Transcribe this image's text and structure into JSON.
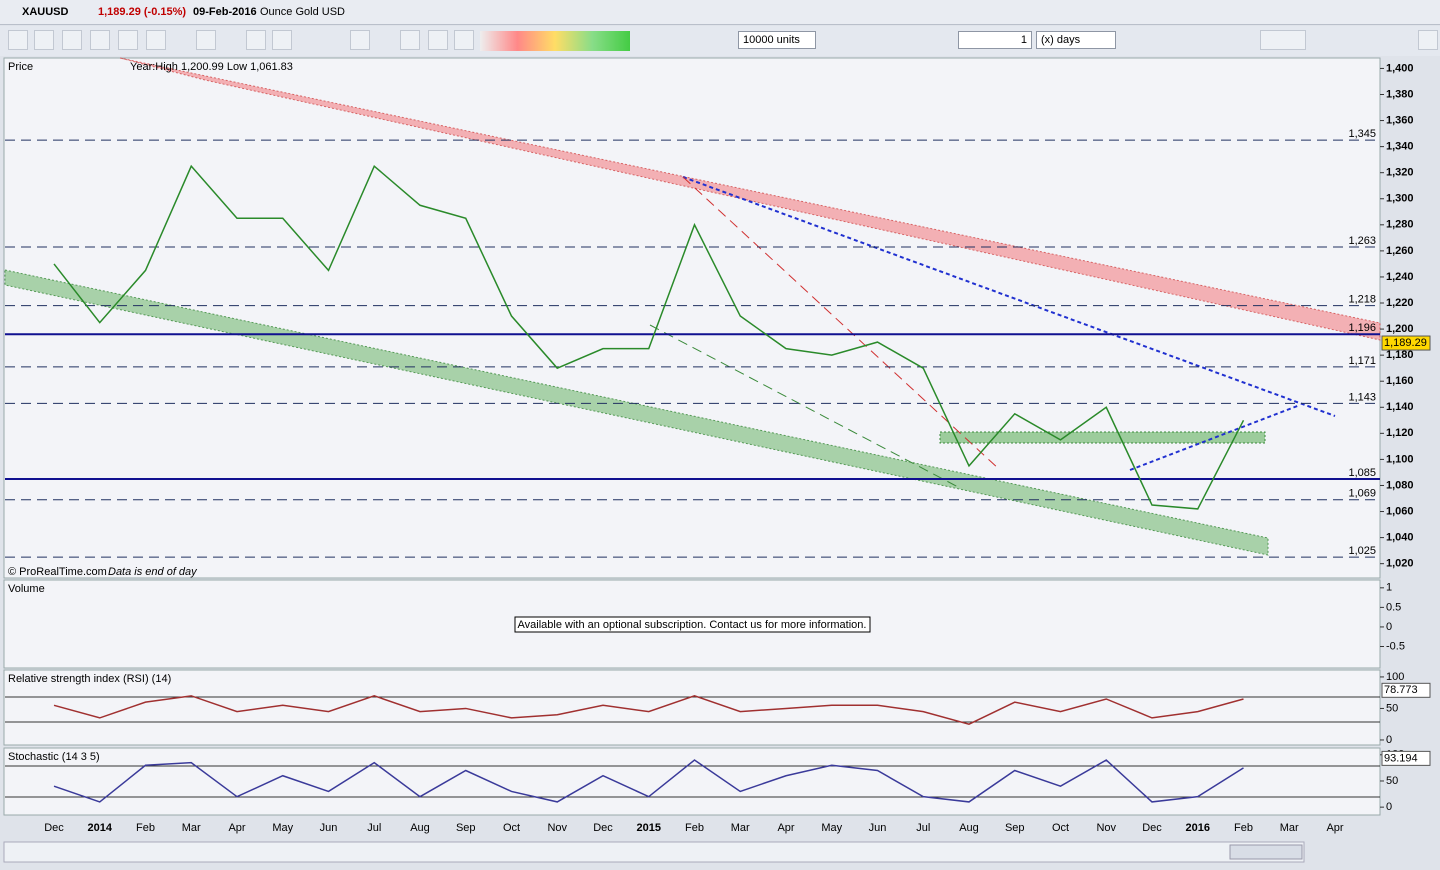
{
  "window": {
    "symbol": "XAUUSD",
    "quote": "1,189.29 (-0.15%)",
    "date": "09-Feb-2016",
    "description": "Ounce Gold USD"
  },
  "toolbar": {
    "quantity": "10000 units",
    "period_value": "1",
    "period_unit": "(x) days"
  },
  "chart_data": [
    {
      "type": "line",
      "title": "Price",
      "subtitle": "Year:High 1,200.99 Low 1,061.83",
      "annotations": [
        "© ProRealTime.com",
        "Data is end of day"
      ],
      "categories": [
        "Dec",
        "2014",
        "Feb",
        "Mar",
        "Apr",
        "May",
        "Jun",
        "Jul",
        "Aug",
        "Sep",
        "Oct",
        "Nov",
        "Dec",
        "2015",
        "Feb",
        "Mar",
        "Apr",
        "May",
        "Jun",
        "Jul",
        "Aug",
        "Sep",
        "Oct",
        "Nov",
        "Dec",
        "2016",
        "Feb",
        "Mar",
        "Apr"
      ],
      "values": [
        1250,
        1205,
        1245,
        1325,
        1285,
        1285,
        1245,
        1325,
        1295,
        1285,
        1210,
        1170,
        1185,
        1185,
        1280,
        1210,
        1185,
        1180,
        1190,
        1170,
        1095,
        1135,
        1115,
        1140,
        1065,
        1062,
        1130,
        null,
        null
      ],
      "color": "#2a8a2a",
      "ylim": [
        1009,
        1408
      ],
      "yticks": [
        {
          "value": 1020,
          "label": "1,020"
        },
        {
          "value": 1040,
          "label": "1,040"
        },
        {
          "value": 1060,
          "label": "1,060"
        },
        {
          "value": 1080,
          "label": "1,080"
        },
        {
          "value": 1100,
          "label": "1,100"
        },
        {
          "value": 1120,
          "label": "1,120"
        },
        {
          "value": 1140,
          "label": "1,140"
        },
        {
          "value": 1160,
          "label": "1,160"
        },
        {
          "value": 1180,
          "label": "1,180"
        },
        {
          "value": 1200,
          "label": "1,200"
        },
        {
          "value": 1220,
          "label": "1,220"
        },
        {
          "value": 1240,
          "label": "1,240"
        },
        {
          "value": 1260,
          "label": "1,260"
        },
        {
          "value": 1280,
          "label": "1,280"
        },
        {
          "value": 1300,
          "label": "1,300"
        },
        {
          "value": 1320,
          "label": "1,320"
        },
        {
          "value": 1340,
          "label": "1,340"
        },
        {
          "value": 1360,
          "label": "1,360"
        },
        {
          "value": 1380,
          "label": "1,380"
        },
        {
          "value": 1400,
          "label": "1,400"
        }
      ],
      "levels": [
        {
          "value": 1345,
          "label": "1,345",
          "style": "dashed"
        },
        {
          "value": 1263,
          "label": "1,263",
          "style": "dashed"
        },
        {
          "value": 1218,
          "label": "1,218",
          "style": "dashed"
        },
        {
          "value": 1196,
          "label": "1,196",
          "style": "solid"
        },
        {
          "value": 1171,
          "label": "1,171",
          "style": "dashed"
        },
        {
          "value": 1143,
          "label": "1,143",
          "style": "dashed"
        },
        {
          "value": 1085,
          "label": "1,085",
          "style": "solid"
        },
        {
          "value": 1069,
          "label": "1,069",
          "style": "dashed"
        },
        {
          "value": 1025,
          "label": "1,025",
          "style": "dashed"
        }
      ],
      "last_value": {
        "value": 1189.29,
        "label": "1,189.29"
      }
    },
    {
      "type": "bar",
      "title": "Volume",
      "message": "Available with an optional subscription. Contact us for more information.",
      "ylim": [
        -1.05,
        1.2
      ],
      "yticks": [
        -0.5,
        0,
        0.5,
        1
      ]
    },
    {
      "type": "line",
      "title": "Relative strength index (RSI) (14)",
      "values": [
        55,
        35,
        60,
        70,
        45,
        55,
        45,
        70,
        45,
        50,
        35,
        40,
        55,
        45,
        70,
        45,
        50,
        55,
        55,
        45,
        25,
        60,
        45,
        65,
        35,
        45,
        65,
        null,
        null
      ],
      "color": "#a03030",
      "ylim": [
        -8,
        111
      ],
      "yticks": [
        0,
        50,
        100
      ],
      "last_value": 78.773
    },
    {
      "type": "line",
      "title": "Stochastic (14 3 5)",
      "values": [
        40,
        10,
        80,
        85,
        20,
        60,
        30,
        85,
        20,
        70,
        30,
        10,
        60,
        20,
        90,
        30,
        60,
        80,
        70,
        20,
        10,
        70,
        40,
        90,
        10,
        20,
        75,
        null,
        null
      ],
      "color": "#3a3a9a",
      "ylim": [
        -15,
        113
      ],
      "yticks": [
        0,
        50,
        100
      ],
      "last_value": 93.194
    }
  ]
}
